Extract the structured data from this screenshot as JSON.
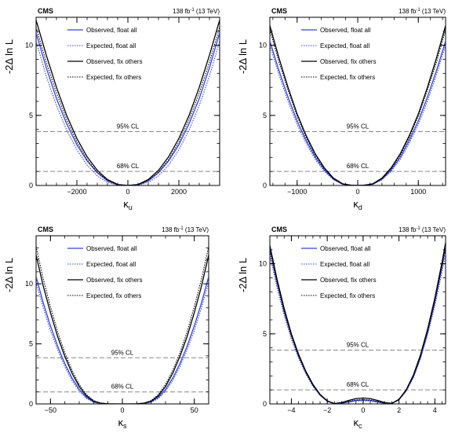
{
  "chart_data": [
    {
      "type": "line",
      "cms_label": "CMS",
      "lumi_label": "138 fb",
      "lumi_sup": "-1",
      "lumi_energy": "(13 TeV)",
      "ylabel": "-2Δ ln L",
      "xlabel_main": "κ",
      "xlabel_sub": "u",
      "xlim": [
        -3600,
        3600
      ],
      "ylim": [
        0,
        12
      ],
      "xticks": [
        -2000,
        0,
        2000
      ],
      "xtick_labels": [
        "−2000",
        "0",
        "2000"
      ],
      "yticks": [
        0,
        5,
        10
      ],
      "ytick_labels": [
        "0",
        "5",
        "10"
      ],
      "cl_lines": [
        {
          "label": "68% CL",
          "y": 1
        },
        {
          "label": "95% CL",
          "y": 3.84
        }
      ],
      "series": [
        {
          "name": "Observed, float all",
          "style": "solid",
          "color": "#3344dd",
          "x": [
            -3600,
            -3200,
            -2800,
            -2400,
            -2000,
            -1600,
            -1200,
            -800,
            -400,
            0,
            400,
            800,
            1200,
            1600,
            2000,
            2400,
            2800,
            3200,
            3600
          ],
          "y": [
            10.9,
            8.4,
            6.2,
            4.4,
            2.9,
            1.75,
            0.9,
            0.33,
            0.05,
            0,
            0.05,
            0.33,
            0.9,
            1.75,
            2.9,
            4.4,
            6.2,
            8.4,
            10.9
          ]
        },
        {
          "name": "Expected, float all",
          "style": "dotted",
          "color": "#3344dd",
          "x": [
            -3600,
            -3200,
            -2800,
            -2400,
            -2000,
            -1600,
            -1200,
            -800,
            -400,
            0,
            400,
            800,
            1200,
            1600,
            2000,
            2400,
            2800,
            3200,
            3600
          ],
          "y": [
            10.3,
            7.8,
            5.7,
            3.95,
            2.55,
            1.45,
            0.68,
            0.22,
            0.03,
            0,
            0.03,
            0.22,
            0.68,
            1.45,
            2.55,
            3.95,
            5.7,
            7.8,
            10.3
          ]
        },
        {
          "name": "Observed, fix others",
          "style": "solid",
          "color": "#000000",
          "x": [
            -3600,
            -3200,
            -2800,
            -2400,
            -2000,
            -1600,
            -1200,
            -800,
            -400,
            0,
            400,
            800,
            1200,
            1600,
            2000,
            2400,
            2800,
            3200,
            3600
          ],
          "y": [
            11.8,
            9.3,
            7.0,
            5.0,
            3.35,
            2.05,
            1.08,
            0.42,
            0.07,
            0,
            0.07,
            0.42,
            1.08,
            2.05,
            3.35,
            5.0,
            7.0,
            9.3,
            11.8
          ]
        },
        {
          "name": "Expected, fix others",
          "style": "dotted",
          "color": "#000000",
          "x": [
            -3600,
            -3200,
            -2800,
            -2400,
            -2000,
            -1600,
            -1200,
            -800,
            -400,
            0,
            400,
            800,
            1200,
            1600,
            2000,
            2400,
            2800,
            3200,
            3600
          ],
          "y": [
            11.3,
            8.8,
            6.6,
            4.7,
            3.1,
            1.85,
            0.95,
            0.36,
            0.05,
            0,
            0.05,
            0.36,
            0.95,
            1.85,
            3.1,
            4.7,
            6.6,
            8.8,
            11.3
          ]
        }
      ]
    },
    {
      "type": "line",
      "cms_label": "CMS",
      "lumi_label": "138 fb",
      "lumi_sup": "-1",
      "lumi_energy": "(13 TeV)",
      "ylabel": "-2Δ ln L",
      "xlabel_main": "κ",
      "xlabel_sub": "d",
      "xlim": [
        -1450,
        1450
      ],
      "ylim": [
        0,
        12
      ],
      "xticks": [
        -1000,
        0,
        1000
      ],
      "xtick_labels": [
        "−1000",
        "0",
        "1000"
      ],
      "yticks": [
        0,
        5,
        10
      ],
      "ytick_labels": [
        "0",
        "5",
        "10"
      ],
      "cl_lines": [
        {
          "label": "68% CL",
          "y": 1
        },
        {
          "label": "95% CL",
          "y": 3.84
        }
      ],
      "series": [
        {
          "name": "Observed, float all",
          "style": "solid",
          "color": "#3344dd",
          "x": [
            -1450,
            -1300,
            -1150,
            -1000,
            -850,
            -700,
            -550,
            -400,
            -250,
            -100,
            0,
            100,
            250,
            400,
            550,
            700,
            850,
            1000,
            1150,
            1300,
            1450
          ],
          "y": [
            10.3,
            8.2,
            6.3,
            4.6,
            3.2,
            2.0,
            1.1,
            0.45,
            0.1,
            0.01,
            0,
            0.01,
            0.1,
            0.45,
            1.1,
            2.0,
            3.2,
            4.6,
            6.3,
            8.2,
            10.3
          ]
        },
        {
          "name": "Expected, float all",
          "style": "dotted",
          "color": "#3344dd",
          "x": [
            -1450,
            -1300,
            -1150,
            -1000,
            -850,
            -700,
            -550,
            -400,
            -250,
            -100,
            0,
            100,
            250,
            400,
            550,
            700,
            850,
            1000,
            1150,
            1300,
            1450
          ],
          "y": [
            10.0,
            7.9,
            6.0,
            4.35,
            3.0,
            1.85,
            1.0,
            0.4,
            0.08,
            0.01,
            0,
            0.01,
            0.08,
            0.4,
            1.0,
            1.85,
            3.0,
            4.35,
            6.0,
            7.9,
            10.0
          ]
        },
        {
          "name": "Observed, fix others",
          "style": "solid",
          "color": "#000000",
          "x": [
            -1450,
            -1300,
            -1150,
            -1000,
            -850,
            -700,
            -550,
            -400,
            -250,
            -100,
            0,
            100,
            250,
            400,
            550,
            700,
            850,
            1000,
            1150,
            1300,
            1450
          ],
          "y": [
            11.4,
            9.1,
            7.0,
            5.1,
            3.55,
            2.25,
            1.25,
            0.52,
            0.12,
            0.01,
            0,
            0.01,
            0.12,
            0.52,
            1.25,
            2.25,
            3.55,
            5.1,
            7.0,
            9.1,
            11.4
          ]
        },
        {
          "name": "Expected, fix others",
          "style": "dotted",
          "color": "#000000",
          "x": [
            -1450,
            -1300,
            -1150,
            -1000,
            -850,
            -700,
            -550,
            -400,
            -250,
            -100,
            0,
            100,
            250,
            400,
            550,
            700,
            850,
            1000,
            1150,
            1300,
            1450
          ],
          "y": [
            11.1,
            8.8,
            6.8,
            4.95,
            3.4,
            2.15,
            1.18,
            0.48,
            0.1,
            0.01,
            0,
            0.01,
            0.1,
            0.48,
            1.18,
            2.15,
            3.4,
            4.95,
            6.8,
            8.8,
            11.1
          ]
        }
      ]
    },
    {
      "type": "line",
      "cms_label": "CMS",
      "lumi_label": "138 fb",
      "lumi_sup": "-1",
      "lumi_energy": "(13 TeV)",
      "ylabel": "-2Δ ln L",
      "xlabel_main": "κ",
      "xlabel_sub": "s",
      "xlim": [
        -60,
        60
      ],
      "ylim": [
        0,
        14
      ],
      "xticks": [
        -50,
        0,
        50
      ],
      "xtick_labels": [
        "−50",
        "0",
        "50"
      ],
      "yticks": [
        0,
        5,
        10
      ],
      "ytick_labels": [
        "0",
        "5",
        "10"
      ],
      "cl_lines": [
        {
          "label": "68% CL",
          "y": 1
        },
        {
          "label": "95% CL",
          "y": 3.84
        }
      ],
      "series": [
        {
          "name": "Observed, float all",
          "style": "solid",
          "color": "#3344dd",
          "x": [
            -60,
            -55,
            -50,
            -45,
            -40,
            -35,
            -30,
            -25,
            -20,
            -15,
            -10,
            -5,
            0,
            5,
            10,
            15,
            20,
            25,
            30,
            35,
            40,
            45,
            50,
            55,
            60
          ],
          "y": [
            10.6,
            8.4,
            6.5,
            4.8,
            3.35,
            2.15,
            1.2,
            0.55,
            0.18,
            0.05,
            0.01,
            0,
            0,
            0,
            0.01,
            0.05,
            0.18,
            0.55,
            1.2,
            2.15,
            3.35,
            4.8,
            6.5,
            8.4,
            10.6
          ]
        },
        {
          "name": "Expected, float all",
          "style": "dotted",
          "color": "#3344dd",
          "x": [
            -60,
            -55,
            -50,
            -45,
            -40,
            -35,
            -30,
            -25,
            -20,
            -15,
            -10,
            -5,
            0,
            5,
            10,
            15,
            20,
            25,
            30,
            35,
            40,
            45,
            50,
            55,
            60
          ],
          "y": [
            10.1,
            8.0,
            6.1,
            4.5,
            3.1,
            1.95,
            1.05,
            0.45,
            0.13,
            0.03,
            0.01,
            0,
            0,
            0,
            0.01,
            0.03,
            0.13,
            0.45,
            1.05,
            1.95,
            3.1,
            4.5,
            6.1,
            8.0,
            10.1
          ]
        },
        {
          "name": "Observed, fix others",
          "style": "solid",
          "color": "#000000",
          "x": [
            -60,
            -55,
            -50,
            -45,
            -40,
            -35,
            -30,
            -25,
            -20,
            -15,
            -10,
            -5,
            0,
            5,
            10,
            15,
            20,
            25,
            30,
            35,
            40,
            45,
            50,
            55,
            60
          ],
          "y": [
            12.4,
            9.8,
            7.6,
            5.6,
            3.95,
            2.55,
            1.45,
            0.68,
            0.23,
            0.06,
            0.01,
            0,
            0,
            0,
            0.01,
            0.06,
            0.23,
            0.68,
            1.45,
            2.55,
            3.95,
            5.6,
            7.6,
            9.8,
            12.4
          ]
        },
        {
          "name": "Expected, fix others",
          "style": "dotted",
          "color": "#000000",
          "x": [
            -60,
            -55,
            -50,
            -45,
            -40,
            -35,
            -30,
            -25,
            -20,
            -15,
            -10,
            -5,
            0,
            5,
            10,
            15,
            20,
            25,
            30,
            35,
            40,
            45,
            50,
            55,
            60
          ],
          "y": [
            13.1,
            10.4,
            8.1,
            6.0,
            4.25,
            2.8,
            1.62,
            0.78,
            0.28,
            0.07,
            0.01,
            0,
            0,
            0,
            0.01,
            0.07,
            0.28,
            0.78,
            1.62,
            2.8,
            4.25,
            6.0,
            8.1,
            10.4,
            13.1
          ]
        }
      ]
    },
    {
      "type": "line",
      "cms_label": "CMS",
      "lumi_label": "138 fb",
      "lumi_sup": "-1",
      "lumi_energy": "(13 TeV)",
      "ylabel": "-2Δ ln L",
      "xlabel_main": "κ",
      "xlabel_sub": "c",
      "xlim": [
        -5.2,
        4.6
      ],
      "ylim": [
        0,
        12
      ],
      "xticks": [
        -4,
        -2,
        0,
        2,
        4
      ],
      "xtick_labels": [
        "−4",
        "−2",
        "0",
        "2",
        "4"
      ],
      "yticks": [
        0,
        5,
        10
      ],
      "ytick_labels": [
        "0",
        "5",
        "10"
      ],
      "cl_lines": [
        {
          "label": "68% CL",
          "y": 1
        },
        {
          "label": "95% CL",
          "y": 3.84
        }
      ],
      "series": [
        {
          "name": "Observed, float all",
          "style": "solid",
          "color": "#3344dd",
          "x": [
            -5.2,
            -4.8,
            -4.4,
            -4.0,
            -3.6,
            -3.2,
            -2.8,
            -2.4,
            -2.0,
            -1.6,
            -1.2,
            -0.8,
            -0.4,
            0,
            0.4,
            0.8,
            1.2,
            1.6,
            2.0,
            2.4,
            2.8,
            3.2,
            3.6,
            4.0,
            4.4,
            4.6
          ],
          "y": [
            11.1,
            8.7,
            6.6,
            4.9,
            3.45,
            2.3,
            1.35,
            0.65,
            0.2,
            0.02,
            0.05,
            0.15,
            0.25,
            0.28,
            0.25,
            0.15,
            0.05,
            0.03,
            0.3,
            0.95,
            1.95,
            3.35,
            5.15,
            7.3,
            9.8,
            11.2
          ]
        },
        {
          "name": "Expected, float all",
          "style": "dotted",
          "color": "#3344dd",
          "x": [
            -5.2,
            -4.8,
            -4.4,
            -4.0,
            -3.6,
            -3.2,
            -2.8,
            -2.4,
            -2.0,
            -1.6,
            -1.2,
            -0.8,
            -0.4,
            0,
            0.4,
            0.8,
            1.2,
            1.6,
            2.0,
            2.4,
            2.8,
            3.2,
            3.6,
            4.0,
            4.4,
            4.6
          ],
          "y": [
            10.6,
            8.3,
            6.3,
            4.6,
            3.25,
            2.15,
            1.25,
            0.6,
            0.18,
            0.02,
            0.04,
            0.12,
            0.2,
            0.22,
            0.2,
            0.12,
            0.04,
            0.03,
            0.28,
            0.9,
            1.85,
            3.2,
            4.95,
            7.0,
            9.4,
            10.7
          ]
        },
        {
          "name": "Observed, fix others",
          "style": "solid",
          "color": "#000000",
          "x": [
            -5.2,
            -4.8,
            -4.4,
            -4.0,
            -3.6,
            -3.2,
            -2.8,
            -2.4,
            -2.0,
            -1.6,
            -1.2,
            -0.8,
            -0.4,
            0,
            0.4,
            0.8,
            1.2,
            1.6,
            2.0,
            2.4,
            2.8,
            3.2,
            3.6,
            4.0,
            4.4,
            4.6
          ],
          "y": [
            11.3,
            8.9,
            6.8,
            5.0,
            3.55,
            2.35,
            1.4,
            0.68,
            0.22,
            0.03,
            0.1,
            0.25,
            0.38,
            0.42,
            0.38,
            0.25,
            0.1,
            0.04,
            0.33,
            1.0,
            2.05,
            3.5,
            5.35,
            7.55,
            10.1,
            11.5
          ]
        },
        {
          "name": "Expected, fix others",
          "style": "dotted",
          "color": "#000000",
          "x": [
            -5.2,
            -4.8,
            -4.4,
            -4.0,
            -3.6,
            -3.2,
            -2.8,
            -2.4,
            -2.0,
            -1.6,
            -1.2,
            -0.8,
            -0.4,
            0,
            0.4,
            0.8,
            1.2,
            1.6,
            2.0,
            2.4,
            2.8,
            3.2,
            3.6,
            4.0,
            4.4,
            4.6
          ],
          "y": [
            10.9,
            8.6,
            6.55,
            4.8,
            3.4,
            2.25,
            1.32,
            0.63,
            0.2,
            0.02,
            0.06,
            0.18,
            0.28,
            0.3,
            0.28,
            0.18,
            0.06,
            0.03,
            0.3,
            0.95,
            1.95,
            3.35,
            5.15,
            7.3,
            9.8,
            11.1
          ]
        }
      ]
    }
  ]
}
